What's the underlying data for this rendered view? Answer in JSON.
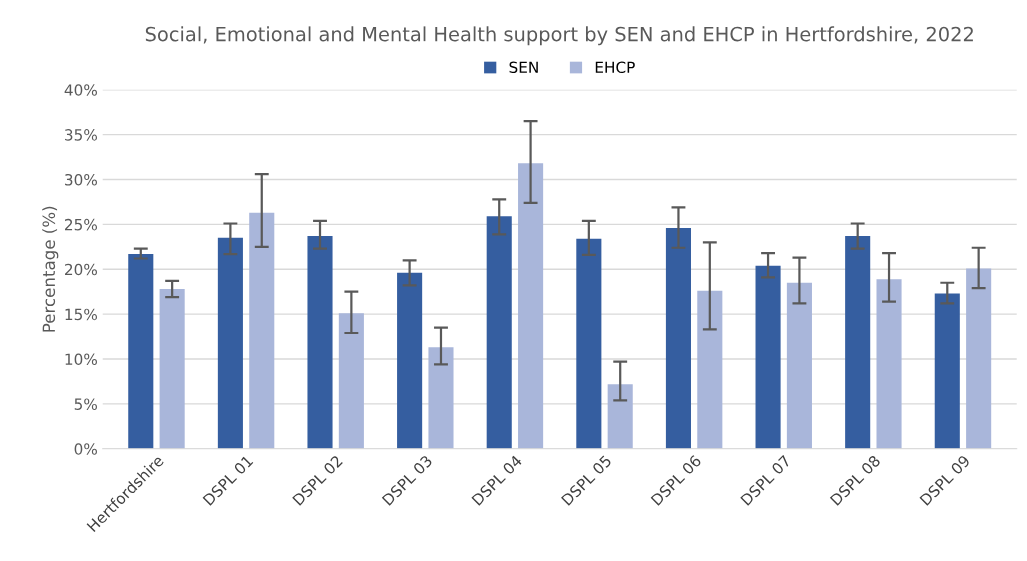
{
  "chart_data": {
    "type": "bar",
    "title": "Social, Emotional and Mental Health support by SEN and EHCP in Hertfordshire, 2022",
    "ylabel": "Percentage (%)",
    "categories": [
      "Hertfordshire",
      "DSPL 01",
      "DSPL 02",
      "DSPL 03",
      "DSPL 04",
      "DSPL 05",
      "DSPL 06",
      "DSPL 07",
      "DSPL 08",
      "DSPL 09"
    ],
    "series": [
      {
        "name": "SEN",
        "color": "#355ea0",
        "values": [
          21.7,
          23.5,
          23.7,
          19.6,
          25.9,
          23.4,
          24.6,
          20.4,
          23.7,
          17.3
        ],
        "errors": [
          [
            21.2,
            22.3
          ],
          [
            21.7,
            25.1
          ],
          [
            22.3,
            25.4
          ],
          [
            18.2,
            21.0
          ],
          [
            23.9,
            27.8
          ],
          [
            21.6,
            25.4
          ],
          [
            22.4,
            26.9
          ],
          [
            19.1,
            21.8
          ],
          [
            22.3,
            25.1
          ],
          [
            16.2,
            18.5
          ]
        ]
      },
      {
        "name": "EHCP",
        "color": "#a9b6da",
        "values": [
          17.8,
          26.3,
          15.1,
          11.3,
          31.8,
          7.2,
          17.6,
          18.5,
          18.9,
          20.1
        ],
        "errors": [
          [
            16.9,
            18.7
          ],
          [
            22.5,
            30.6
          ],
          [
            12.9,
            17.5
          ],
          [
            9.4,
            13.5
          ],
          [
            27.4,
            36.5
          ],
          [
            5.4,
            9.7
          ],
          [
            13.3,
            23.0
          ],
          [
            16.2,
            21.3
          ],
          [
            16.4,
            21.8
          ],
          [
            17.9,
            22.4
          ]
        ]
      }
    ],
    "ylim": [
      0,
      40
    ],
    "yticks": [
      {
        "value": 0,
        "label": "0%"
      },
      {
        "value": 5,
        "label": "5%"
      },
      {
        "value": 10,
        "label": "10%"
      },
      {
        "value": 15,
        "label": "15%"
      },
      {
        "value": 20,
        "label": "20%"
      },
      {
        "value": 25,
        "label": "25%"
      },
      {
        "value": 30,
        "label": "30%"
      },
      {
        "value": 35,
        "label": "35%"
      },
      {
        "value": 40,
        "label": "40%"
      }
    ],
    "grid": "y",
    "legend": "top"
  }
}
